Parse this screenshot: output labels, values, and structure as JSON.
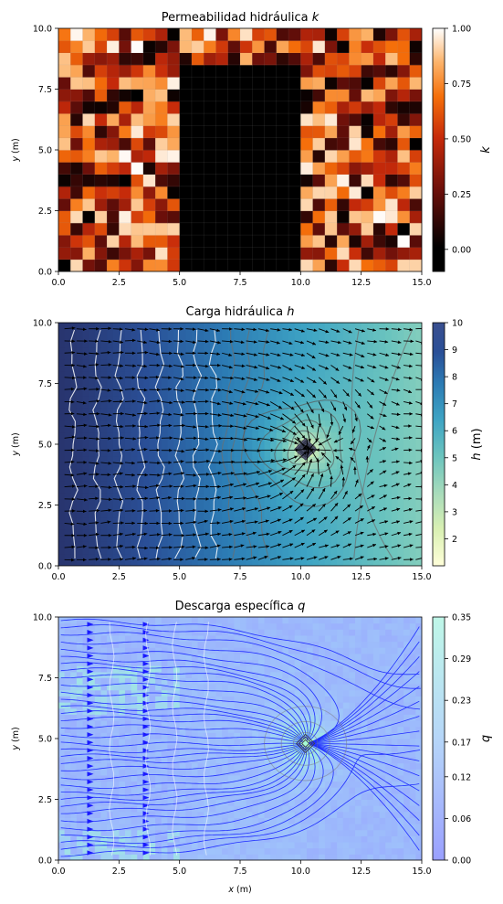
{
  "chart_data": [
    {
      "type": "heatmap",
      "title": "Permeabilidad hidráulica k",
      "title_text": "Permeabilidad hidráulica ",
      "title_var": "k",
      "xlabel": "",
      "ylabel": "y (m)",
      "xlim": [
        0,
        15
      ],
      "ylim": [
        0,
        10
      ],
      "xticks": [
        "0.0",
        "2.5",
        "5.0",
        "7.5",
        "10.0",
        "12.5",
        "15.0"
      ],
      "yticks": [
        "0.0",
        "2.5",
        "5.0",
        "7.5",
        "10.0"
      ],
      "grid_cols": 30,
      "grid_rows": 20,
      "low_k_block": {
        "x": [
          5,
          10
        ],
        "y": [
          0,
          8.5
        ],
        "k": 0.001
      },
      "colorbar": {
        "label": "k",
        "ticks": [
          "0.00",
          "0.25",
          "0.50",
          "0.75",
          "1.00"
        ],
        "range": [
          -0.1,
          1.0
        ],
        "colormap": "gist_heat"
      }
    },
    {
      "type": "heatmap",
      "title": "Carga hidráulica h",
      "title_text": "Carga hidráulica ",
      "title_var": "h",
      "xlabel": "",
      "ylabel": "y (m)",
      "xlim": [
        0,
        15
      ],
      "ylim": [
        0,
        10
      ],
      "xticks": [
        "0.0",
        "2.5",
        "5.0",
        "7.5",
        "10.0",
        "12.5",
        "15.0"
      ],
      "yticks": [
        "0.0",
        "2.5",
        "5.0",
        "7.5",
        "10.0"
      ],
      "h_left": 10,
      "h_right": 4.5,
      "well": {
        "x": 10.2,
        "y": 4.8,
        "h": 1
      },
      "quiver": true,
      "colorbar": {
        "label": "h (m)",
        "ticks": [
          "2",
          "3",
          "4",
          "5",
          "6",
          "7",
          "8",
          "9",
          "10"
        ],
        "range": [
          1,
          10
        ],
        "colormap": "YlGnBu"
      }
    },
    {
      "type": "heatmap",
      "title": "Descarga específica q",
      "title_text": "Descarga específica ",
      "title_var": "q",
      "xlabel": "x (m)",
      "ylabel": "y (m)",
      "xlim": [
        0,
        15
      ],
      "ylim": [
        0,
        10
      ],
      "xticks": [
        "0.0",
        "2.5",
        "5.0",
        "7.5",
        "10.0",
        "12.5",
        "15.0"
      ],
      "yticks": [
        "0.0",
        "2.5",
        "5.0",
        "7.5",
        "10.0"
      ],
      "streamlines": true,
      "colorbar": {
        "label": "q",
        "ticks": [
          "0.00",
          "0.06",
          "0.12",
          "0.17",
          "0.23",
          "0.29",
          "0.35"
        ],
        "range": [
          0,
          0.35
        ],
        "colormap": "cool"
      }
    }
  ]
}
